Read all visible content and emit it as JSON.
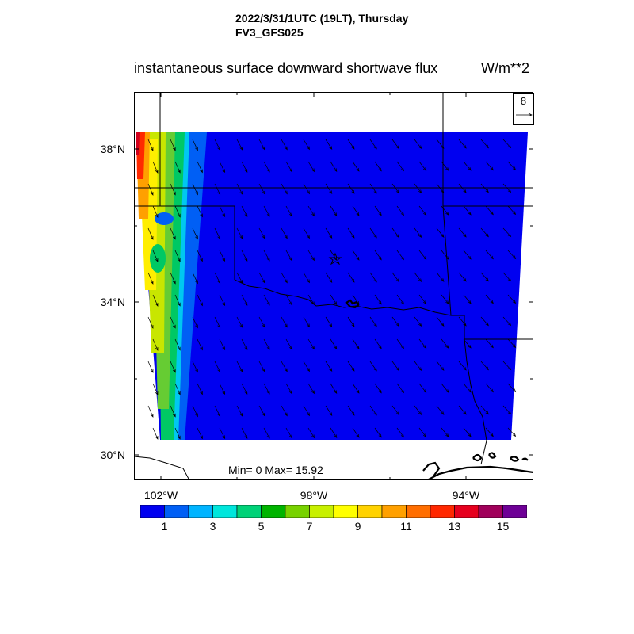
{
  "header": {
    "line1": "2022/3/31/1UTC (19LT), Thursday",
    "line2": "FV3_GFS025"
  },
  "title": "instantaneous surface downward shortwave flux",
  "units": "W/m**2",
  "stats": "Min= 0 Max= 15.92",
  "vector_reference": "8",
  "axes": {
    "lat_ticks": [
      "38°N",
      "34°N",
      "30°N"
    ],
    "lon_ticks": [
      "102°W",
      "98°W",
      "94°W"
    ]
  },
  "colorbar": {
    "labels": [
      "1",
      "3",
      "5",
      "7",
      "9",
      "11",
      "13",
      "15"
    ],
    "colors": [
      "#0000f0",
      "#005ff5",
      "#00b4ff",
      "#00e6dc",
      "#00d278",
      "#00b400",
      "#78d200",
      "#c8f000",
      "#ffff00",
      "#ffd200",
      "#ffa000",
      "#ff6e00",
      "#ff2800",
      "#e6001e",
      "#a0005a",
      "#6e0096"
    ]
  },
  "map": {
    "extent": {
      "lon": [
        -102.7,
        -92.3
      ],
      "lat": [
        29.6,
        39.5
      ]
    },
    "field_fill_color": "#0000f0"
  }
}
